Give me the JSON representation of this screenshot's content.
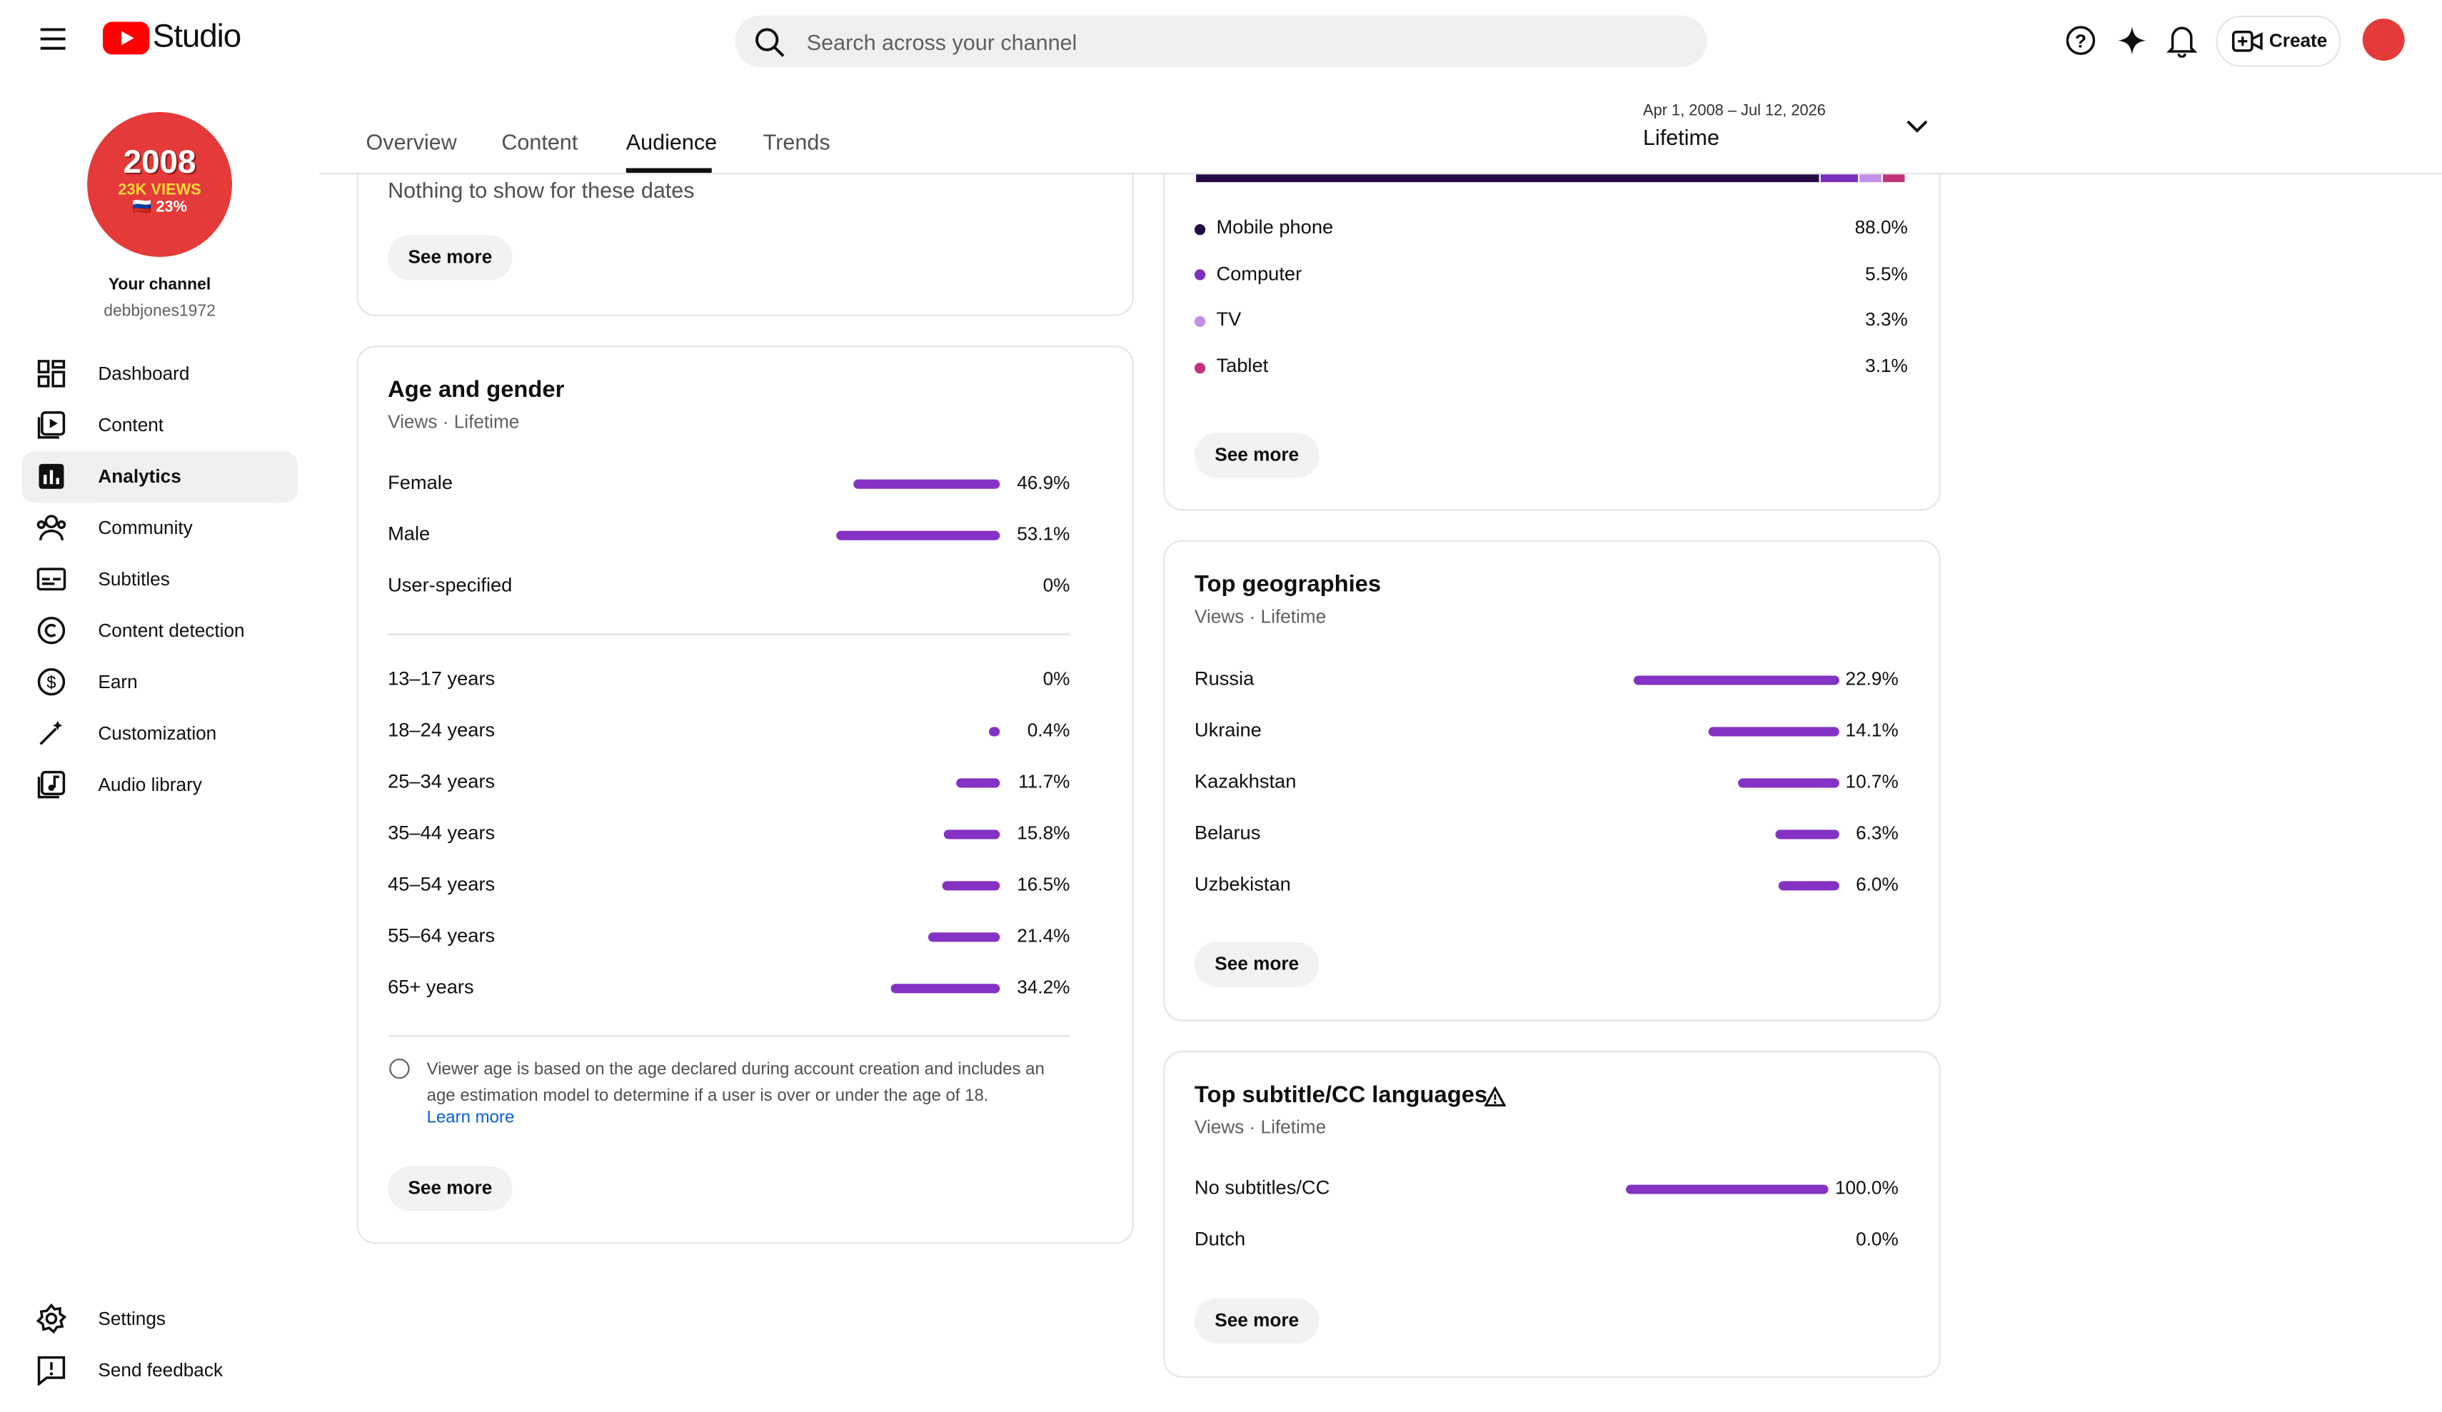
{
  "header": {
    "logo": "Studio",
    "search_placeholder": "Search across your channel",
    "create": "Create"
  },
  "channel": {
    "avatar_line1": "2008",
    "avatar_line2": "23K VIEWS",
    "avatar_line3": "🇷🇺 23%",
    "name": "Your channel",
    "handle": "debbjones1972"
  },
  "nav": [
    "Dashboard",
    "Content",
    "Analytics",
    "Community",
    "Subtitles",
    "Content detection",
    "Earn",
    "Customization",
    "Audio library"
  ],
  "nav_bottom": [
    "Settings",
    "Send feedback"
  ],
  "tabs": [
    "Overview",
    "Content",
    "Audience",
    "Trends"
  ],
  "date_range": {
    "range": "Apr 1, 2008 – Jul 12, 2026",
    "label": "Lifetime"
  },
  "top_card": {
    "message": "Nothing to show for these dates",
    "button": "See more"
  },
  "age_gender": {
    "title": "Age and gender",
    "subtitle": "Views · Lifetime",
    "gender": [
      {
        "name": "Female",
        "value": 46.9,
        "label": "46.9%"
      },
      {
        "name": "Male",
        "value": 53.1,
        "label": "53.1%"
      },
      {
        "name": "User-specified",
        "value": 0,
        "label": "0%"
      }
    ],
    "age": [
      {
        "name": "13–17 years",
        "value": 0,
        "label": "0%"
      },
      {
        "name": "18–24 years",
        "value": 0.4,
        "label": "0.4%"
      },
      {
        "name": "25–34 years",
        "value": 11.7,
        "label": "11.7%"
      },
      {
        "name": "35–44 years",
        "value": 15.8,
        "label": "15.8%"
      },
      {
        "name": "45–54 years",
        "value": 16.5,
        "label": "16.5%"
      },
      {
        "name": "55–64 years",
        "value": 21.4,
        "label": "21.4%"
      },
      {
        "name": "65+ years",
        "value": 34.2,
        "label": "34.2%"
      }
    ],
    "note": "Viewer age is based on the age declared during account creation and includes an age estimation model to determine if a user is over or under the age of 18.",
    "learn_more": "Learn more",
    "button": "See more"
  },
  "devices": {
    "items": [
      {
        "name": "Mobile phone",
        "value": 88.0,
        "label": "88.0%",
        "color": "#250b45"
      },
      {
        "name": "Computer",
        "value": 5.5,
        "label": "5.5%",
        "color": "#7b2fbe"
      },
      {
        "name": "TV",
        "value": 3.3,
        "label": "3.3%",
        "color": "#c38ee8"
      },
      {
        "name": "Tablet",
        "value": 3.1,
        "label": "3.1%",
        "color": "#c2327a"
      }
    ],
    "button": "See more"
  },
  "geographies": {
    "title": "Top geographies",
    "subtitle": "Views · Lifetime",
    "items": [
      {
        "name": "Russia",
        "value": 22.9,
        "label": "22.9%"
      },
      {
        "name": "Ukraine",
        "value": 14.1,
        "label": "14.1%"
      },
      {
        "name": "Kazakhstan",
        "value": 10.7,
        "label": "10.7%"
      },
      {
        "name": "Belarus",
        "value": 6.3,
        "label": "6.3%"
      },
      {
        "name": "Uzbekistan",
        "value": 6.0,
        "label": "6.0%"
      }
    ],
    "button": "See more"
  },
  "subtitles": {
    "title": "Top subtitle/CC languages",
    "subtitle": "Views · Lifetime",
    "items": [
      {
        "name": "No subtitles/CC",
        "value": 100.0,
        "label": "100.0%"
      },
      {
        "name": "Dutch",
        "value": 0.0,
        "label": "0.0%"
      }
    ],
    "button": "See more"
  }
}
